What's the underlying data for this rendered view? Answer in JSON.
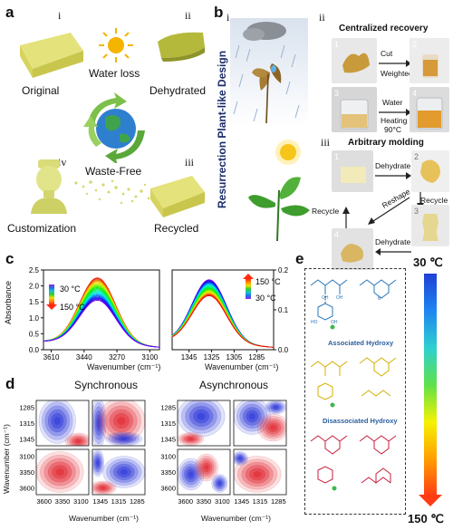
{
  "panel_a": {
    "label": "a",
    "numerals": [
      "i",
      "ii",
      "iii",
      "iv"
    ],
    "water_loss": "Water loss",
    "original": "Original",
    "dehydrated": "Dehydrated",
    "waste_free": "Waste-Free",
    "customization": "Customization",
    "recycled": "Recycled"
  },
  "panel_b": {
    "label": "b",
    "numerals": [
      "i",
      "ii",
      "iii"
    ],
    "side_title": "Resurrection Plant-like Design",
    "centralized": "Centralized recovery",
    "cut": "Cut",
    "weighted": "Weighted",
    "water": "Water",
    "heating": "Heating",
    "temp": "90°C",
    "arbitrary": "Arbitrary molding",
    "dehydrate": "Dehydrate",
    "reshape": "Reshape",
    "recycle": "Recycle",
    "nums": [
      "1",
      "2",
      "3",
      "4"
    ]
  },
  "panel_c": {
    "label": "c",
    "ylabel": "Absorbance",
    "xlabel": "Wavenumber (cm⁻¹)",
    "left_t1": "30 °C",
    "left_t2": "150 °C",
    "right_t1": "150 °C",
    "right_t2": "30 °C"
  },
  "panel_d": {
    "label": "d",
    "sync": "Synchronous",
    "async": "Asynchronous",
    "ylabel": "Wavenumber (cm⁻¹)",
    "xlabel": "Wavenumber (cm⁻¹)"
  },
  "panel_e": {
    "label": "e",
    "assoc": "Associated Hydroxy",
    "disassoc": "Disassociated Hydroxy",
    "top_temp": "30 ℃",
    "bottom_temp": "150 ℃"
  },
  "chart_data": [
    {
      "type": "line",
      "panel": "c-left",
      "x_range": [
        3650,
        3050
      ],
      "xticks": [
        "3610",
        "3440",
        "3270",
        "3100"
      ],
      "ylim": [
        0.0,
        2.5
      ],
      "yticks": [
        "0.0",
        "0.5",
        "1.0",
        "1.5",
        "2.0",
        "2.5"
      ],
      "peak_x": 3370,
      "series_peak_range": [
        1.5,
        2.2
      ],
      "series_count": 24,
      "legend": [
        "30 °C",
        "150 °C"
      ]
    },
    {
      "type": "line",
      "panel": "c-right",
      "x_range": [
        1360,
        1270
      ],
      "xticks": [
        "1345",
        "1325",
        "1305",
        "1285"
      ],
      "ylim": [
        0.0,
        0.2
      ],
      "yticks": [
        "0.0",
        "0.1",
        "0.2"
      ],
      "peak_x": 1327,
      "series_peak_range": [
        0.13,
        0.17
      ],
      "series_count": 24,
      "legend": [
        "150 °C",
        "30 °C"
      ]
    },
    {
      "type": "heatmap",
      "panel": "d-synchronous",
      "x_ticks_left": [
        "3600",
        "3350",
        "3100"
      ],
      "x_ticks_right": [
        "1345",
        "1315",
        "1285"
      ],
      "y_ticks_top": [
        "1285",
        "1315",
        "1345"
      ],
      "y_ticks_bottom": [
        "3100",
        "3350",
        "3600"
      ]
    },
    {
      "type": "heatmap",
      "panel": "d-asynchronous",
      "x_ticks_left": [
        "3600",
        "3350",
        "3100"
      ],
      "x_ticks_right": [
        "1345",
        "1315",
        "1285"
      ],
      "y_ticks_top": [
        "1285",
        "1315",
        "1345"
      ],
      "y_ticks_bottom": [
        "3100",
        "3350",
        "3600"
      ]
    }
  ]
}
